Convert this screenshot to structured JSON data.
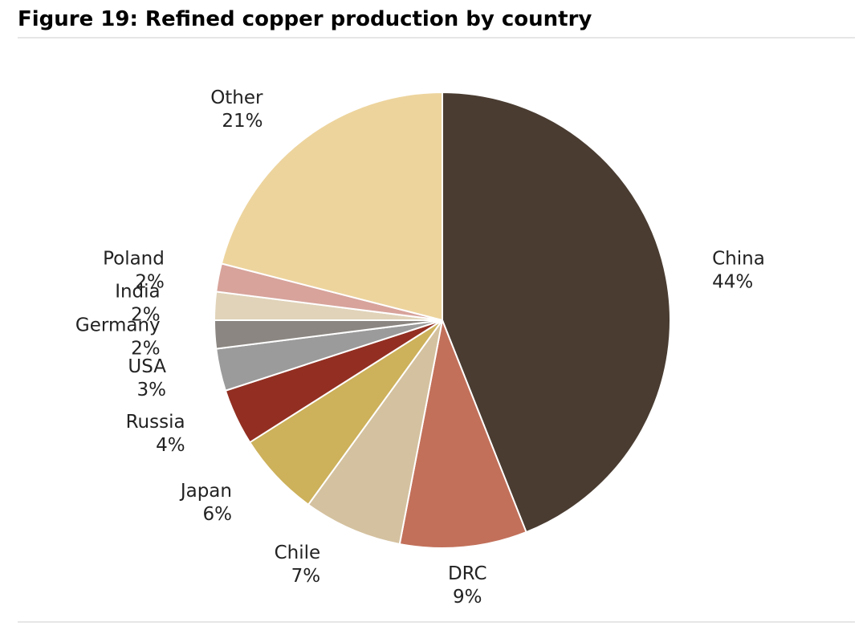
{
  "chart_data": {
    "type": "pie",
    "title": "Figure 19: Refined copper production by country",
    "categories": [
      "China",
      "DRC",
      "Chile",
      "Japan",
      "Russia",
      "USA",
      "Germany",
      "India",
      "Poland",
      "Other"
    ],
    "values": [
      44,
      9,
      7,
      6,
      4,
      3,
      2,
      2,
      2,
      21
    ],
    "value_labels": [
      "44%",
      "9%",
      "7%",
      "6%",
      "4%",
      "3%",
      "2%",
      "2%",
      "2%",
      "21%"
    ],
    "colors": [
      "#4a3c31",
      "#c2705a",
      "#d4c19f",
      "#cdb15b",
      "#922f22",
      "#9b9b9b",
      "#8b8681",
      "#e0d3b9",
      "#d7a39b",
      "#edd49d"
    ]
  }
}
